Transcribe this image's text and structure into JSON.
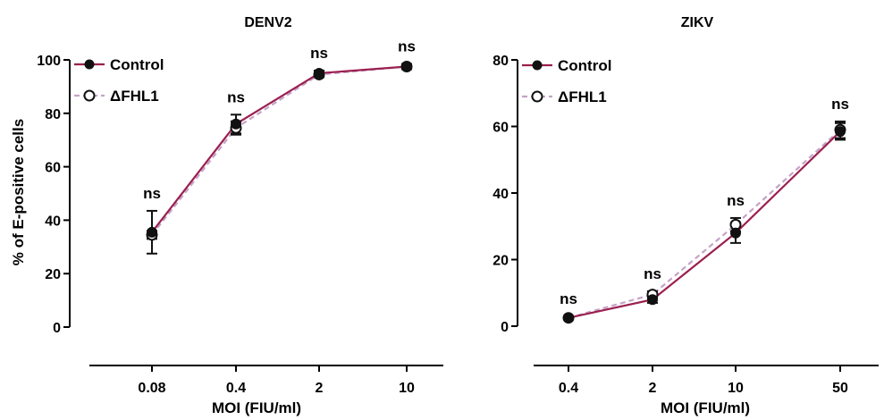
{
  "colors": {
    "control": "#9b1f4f",
    "dfhl1": "#c4a3c8",
    "marker": "#111111",
    "axis": "#000000"
  },
  "chart_data": [
    {
      "type": "line",
      "title": "DENV2",
      "xlabel": "MOI (FIU/ml)",
      "ylabel": "% of E-positive  cells",
      "categories": [
        "0.08",
        "0.4",
        "2",
        "10"
      ],
      "ylim": [
        0,
        100
      ],
      "yticks": [
        "0",
        "20",
        "40",
        "60",
        "80",
        "100"
      ],
      "grid": false,
      "legend_position": "top-left",
      "series": [
        {
          "name": "Control",
          "values": [
            35.5,
            76.0,
            95.0,
            97.5
          ],
          "errors": [
            8.0,
            3.5,
            1.0,
            1.0
          ],
          "marker": "filled-circle",
          "line": "solid",
          "color_key": "control"
        },
        {
          "name": "ΔFHL1",
          "values": [
            34.5,
            74.5,
            94.5,
            97.5
          ],
          "errors": [
            1.5,
            2.5,
            1.0,
            1.0
          ],
          "marker": "open-circle",
          "line": "dashed",
          "color_key": "dfhl1"
        }
      ],
      "annotations": [
        "ns",
        "ns",
        "ns",
        "ns"
      ]
    },
    {
      "type": "line",
      "title": "ZIKV",
      "xlabel": "MOI (FIU/ml)",
      "ylabel": "",
      "categories": [
        "0.4",
        "2",
        "10",
        "50"
      ],
      "ylim": [
        0,
        80
      ],
      "yticks": [
        "0",
        "20",
        "40",
        "60",
        "80"
      ],
      "grid": false,
      "legend_position": "top-left",
      "series": [
        {
          "name": "Control",
          "values": [
            2.5,
            8.0,
            28.0,
            58.5
          ],
          "errors": [
            0.5,
            1.0,
            3.0,
            2.5
          ],
          "marker": "filled-circle",
          "line": "solid",
          "color_key": "control"
        },
        {
          "name": "ΔFHL1",
          "values": [
            2.5,
            9.5,
            30.5,
            59.0
          ],
          "errors": [
            0.5,
            1.0,
            2.0,
            2.5
          ],
          "marker": "open-circle",
          "line": "dashed",
          "color_key": "dfhl1"
        }
      ],
      "annotations": [
        "ns",
        "ns",
        "ns",
        "ns"
      ]
    }
  ]
}
